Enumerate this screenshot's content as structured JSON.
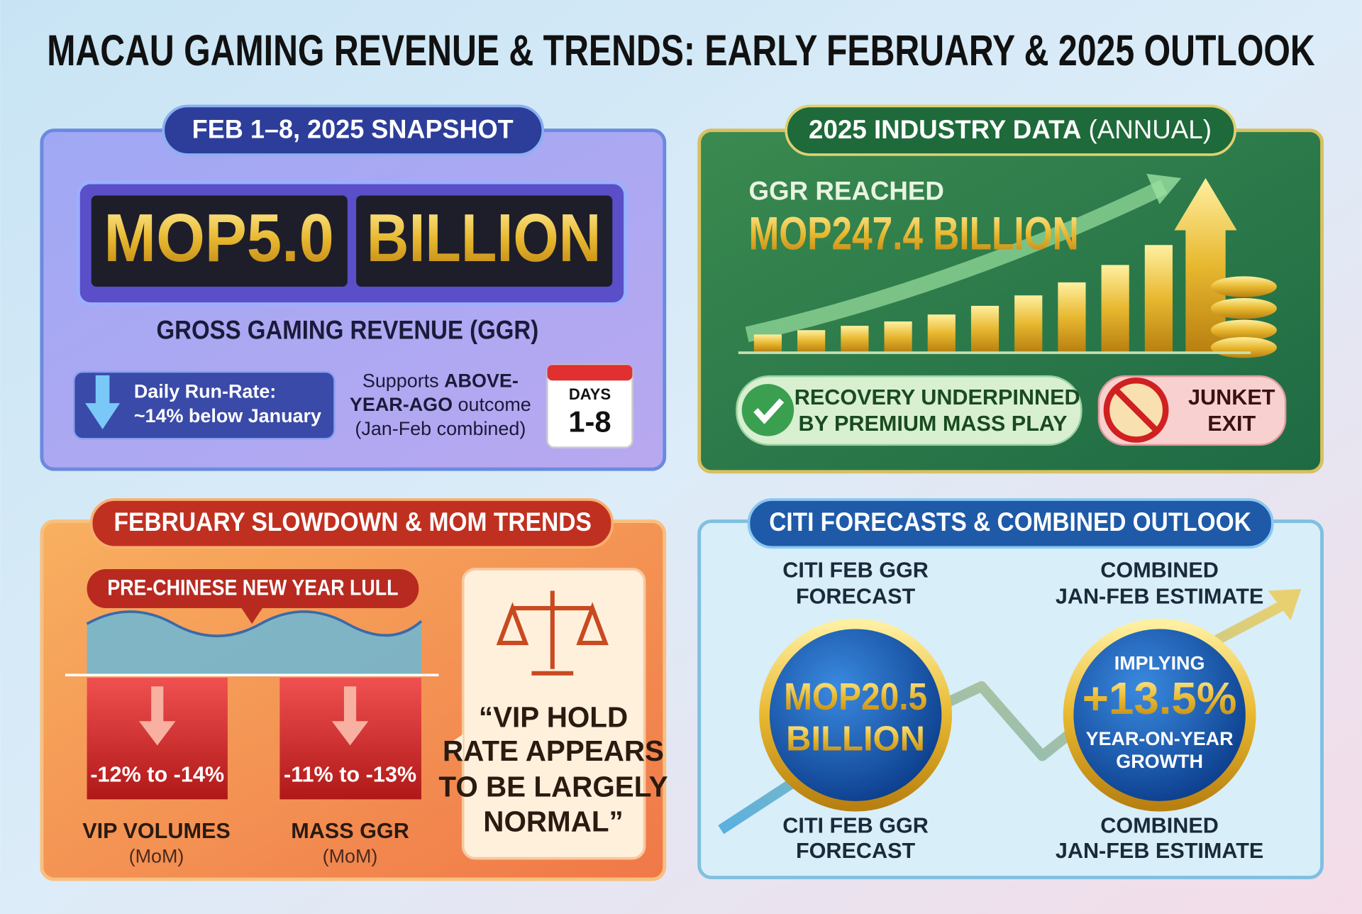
{
  "title": "MACAU GAMING REVENUE & TRENDS: EARLY FEBRUARY & 2025 OUTLOOK",
  "snapshot": {
    "title": "FEB 1–8, 2025 SNAPSHOT",
    "headline": [
      "MOP5.0",
      "BILLION"
    ],
    "subtitle": "GROSS GAMING REVENUE (GGR)",
    "run_rate": [
      "Daily Run-Rate:",
      "~14% below January"
    ],
    "supports": [
      "Supports ",
      "ABOVE-",
      "YEAR-AGO",
      " outcome",
      "(Jan-Feb combined)"
    ],
    "calendar": [
      "DAYS",
      "1-8"
    ]
  },
  "industry": {
    "title": "2025 INDUSTRY DATA",
    "title_note": " (ANNUAL)",
    "label": "GGR REACHED",
    "value": "MOP247.4 BILLION",
    "badge_recovery": [
      "RECOVERY UNDERPINNED",
      "BY PREMIUM MASS PLAY"
    ],
    "badge_junket": [
      "JUNKET",
      "EXIT"
    ]
  },
  "slowdown": {
    "title": "FEBRUARY SLOWDOWN & MOM TRENDS",
    "lull": "PRE-CHINESE NEW YEAR LULL",
    "items": [
      {
        "range": "-12% to -14%",
        "label": "VIP VOLUMES",
        "note": "(MoM)"
      },
      {
        "range": "-11% to -13%",
        "label": "MASS GGR",
        "note": "(MoM)"
      }
    ],
    "quote": [
      "“VIP HOLD",
      "RATE APPEARS",
      "TO BE LARGELY",
      "NORMAL”"
    ]
  },
  "citi": {
    "title": "CITI FORECASTS & COMBINED OUTLOOK",
    "top_labels": [
      [
        "CITI FEB GGR",
        "FORECAST"
      ],
      [
        "COMBINED",
        "JAN-FEB ESTIMATE"
      ]
    ],
    "forecast": [
      "MOP20.5",
      "BILLION"
    ],
    "growth": [
      "IMPLYING",
      "+13.5%",
      "YEAR-ON-YEAR",
      "GROWTH"
    ],
    "bottom_labels": [
      [
        "CITI FEB GGR",
        "FORECAST"
      ],
      [
        "COMBINED",
        "JAN-FEB ESTIMATE"
      ]
    ]
  }
}
